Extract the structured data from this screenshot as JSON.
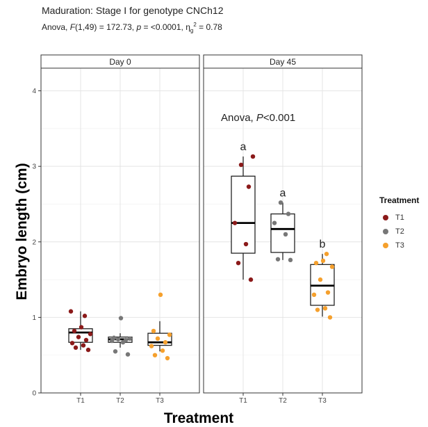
{
  "title": "Maduration: Stage I for genotype CNCh12",
  "subtitle": {
    "part1": "Anova, ",
    "f_label": "F",
    "part2": "(1,49) = 172.73, ",
    "p_label": "p",
    "part3": " = <0.0001, η",
    "sub": "g",
    "sup": "2",
    "part4": " = 0.78"
  },
  "chart_data": {
    "type": "boxplot",
    "xlabel": "Treatment",
    "ylabel": "Embryo length (cm)",
    "ylim": [
      0,
      4.3
    ],
    "y_ticks": [
      0,
      1,
      2,
      3,
      4
    ],
    "categories": [
      "T1",
      "T2",
      "T3"
    ],
    "grid": true,
    "legend": {
      "title": "Treatment",
      "placement": "right",
      "items": [
        {
          "label": "T1",
          "color": "#8B1A1A"
        },
        {
          "label": "T2",
          "color": "#777777"
        },
        {
          "label": "T3",
          "color": "#F5A02D"
        }
      ]
    },
    "panels": [
      {
        "label": "Day 0",
        "annotation": "",
        "groups": [
          {
            "treatment": "T1",
            "whisker_low": 0.57,
            "q1": 0.67,
            "median": 0.8,
            "q3": 0.85,
            "whisker_high": 1.08,
            "letter": "",
            "points": [
              0.57,
              0.6,
              0.63,
              0.66,
              0.7,
              0.74,
              0.78,
              0.82,
              0.87,
              1.02,
              1.08
            ]
          },
          {
            "treatment": "T2",
            "whisker_low": 0.6,
            "q1": 0.67,
            "median": 0.71,
            "q3": 0.74,
            "whisker_high": 0.79,
            "letter": "",
            "points": [
              0.51,
              0.55,
              0.67,
              0.69,
              0.7,
              0.71,
              0.72,
              0.73,
              0.99
            ]
          },
          {
            "treatment": "T3",
            "whisker_low": 0.55,
            "q1": 0.63,
            "median": 0.67,
            "q3": 0.79,
            "whisker_high": 0.95,
            "letter": "",
            "points": [
              0.46,
              0.5,
              0.56,
              0.62,
              0.67,
              0.72,
              0.77,
              0.82,
              1.3
            ]
          }
        ]
      },
      {
        "label": "Day 45",
        "annotation": {
          "prefix": "Anova, ",
          "p": "P",
          "suffix": "<0.001"
        },
        "groups": [
          {
            "treatment": "T1",
            "whisker_low": 1.5,
            "q1": 1.85,
            "median": 2.25,
            "q3": 2.87,
            "whisker_high": 3.13,
            "letter": "a",
            "points": [
              1.5,
              1.72,
              1.97,
              2.25,
              2.73,
              3.02,
              3.13
            ]
          },
          {
            "treatment": "T2",
            "whisker_low": 1.76,
            "q1": 1.86,
            "median": 2.17,
            "q3": 2.37,
            "whisker_high": 2.52,
            "letter": "a",
            "points": [
              1.76,
              1.77,
              2.1,
              2.25,
              2.37,
              2.52
            ]
          },
          {
            "treatment": "T3",
            "whisker_low": 1.01,
            "q1": 1.16,
            "median": 1.42,
            "q3": 1.7,
            "whisker_high": 1.84,
            "letter": "b",
            "points": [
              1.0,
              1.1,
              1.12,
              1.3,
              1.33,
              1.5,
              1.67,
              1.72,
              1.75,
              1.84
            ]
          }
        ]
      }
    ]
  }
}
